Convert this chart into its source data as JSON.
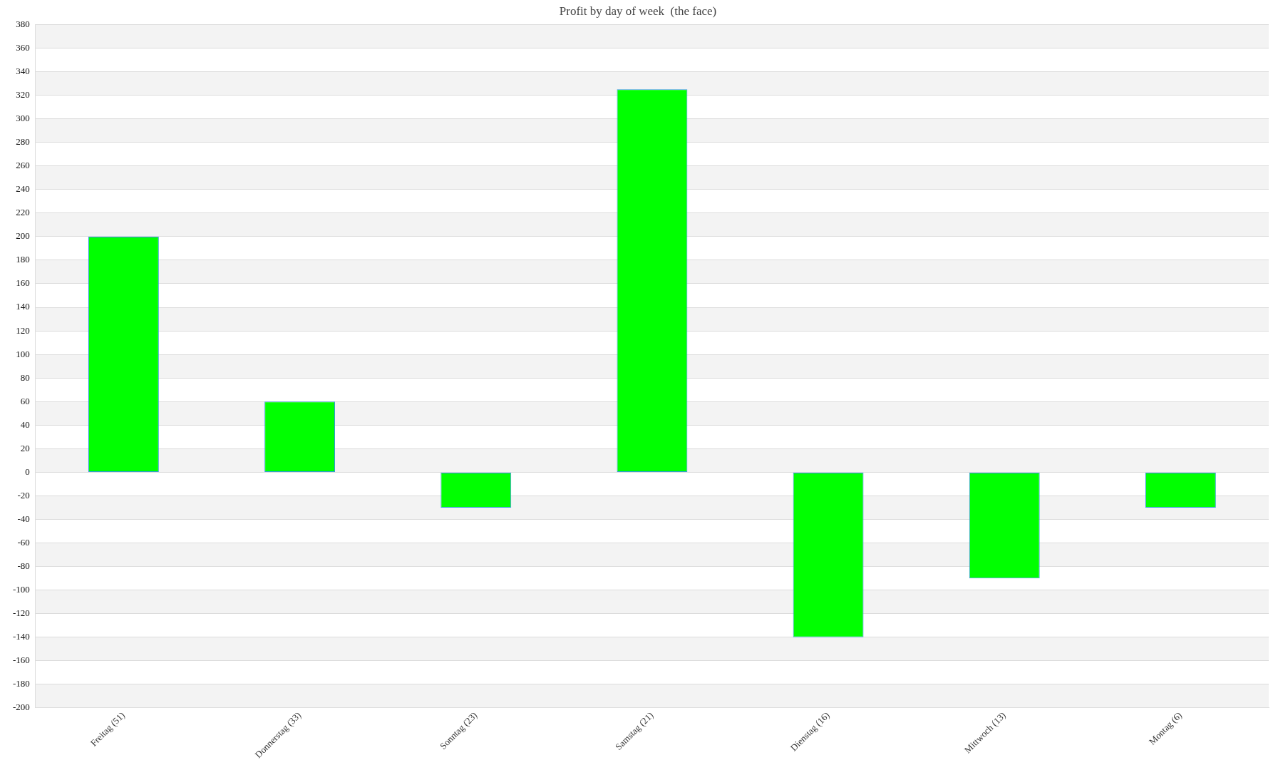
{
  "chart_data": {
    "type": "bar",
    "title": "Profit by day of week  (the face)",
    "categories": [
      "Freitag (51)",
      "Donnerstag (33)",
      "Sonntag (23)",
      "Samstag (21)",
      "Dienstag (16)",
      "Mittwoch (13)",
      "Montag (6)"
    ],
    "values": [
      200,
      60,
      -30,
      325,
      -140,
      -90,
      -30
    ],
    "color": "#00ff00",
    "ylim": [
      -200,
      380
    ],
    "yticks": [
      -200,
      -180,
      -160,
      -140,
      -120,
      -100,
      -80,
      -60,
      -40,
      -20,
      0,
      20,
      40,
      60,
      80,
      100,
      120,
      140,
      160,
      180,
      200,
      220,
      240,
      260,
      280,
      300,
      320,
      340,
      360,
      380
    ],
    "grid": "y",
    "legend": false
  }
}
